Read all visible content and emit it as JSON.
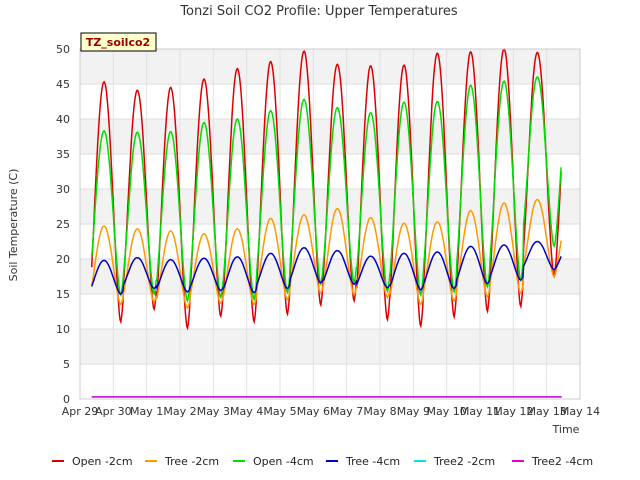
{
  "chart_data": {
    "type": "line",
    "title": "Tonzi Soil CO2 Profile: Upper Temperatures",
    "xlabel": "Time",
    "ylabel": "Soil Temperature (C)",
    "ylim": [
      0,
      50
    ],
    "yticks": [
      0,
      5,
      10,
      15,
      20,
      25,
      30,
      35,
      40,
      45,
      50
    ],
    "xlim": [
      "2024-04-29",
      "2024-05-14"
    ],
    "xtick_labels": [
      "Apr 29",
      "Apr 30",
      "May 1",
      "May 2",
      "May 3",
      "May 4",
      "May 5",
      "May 6",
      "May 7",
      "May 8",
      "May 9",
      "May 10",
      "May 11",
      "May 12",
      "May 13",
      "May 14"
    ],
    "x_start_day": 0.35,
    "badge": "TZ_soilco2",
    "grid": true,
    "legend_position": "bottom",
    "series": [
      {
        "name": "Open -2cm",
        "color": "#dd0000",
        "daily_max": [
          45.3,
          44.1,
          44.5,
          45.7,
          47.2,
          48.2,
          49.7,
          47.8,
          47.6,
          47.7,
          49.4,
          49.6,
          50.0,
          49.5
        ],
        "daily_min": [
          11.0,
          12.8,
          10.1,
          11.8,
          11.0,
          12.1,
          13.4,
          14.0,
          11.3,
          10.4,
          11.7,
          12.5,
          13.2,
          17.5
        ]
      },
      {
        "name": "Tree -2cm",
        "color": "#ff9900",
        "daily_max": [
          24.7,
          24.3,
          24.0,
          23.6,
          24.3,
          25.8,
          26.3,
          27.2,
          25.9,
          25.1,
          25.3,
          26.9,
          28.0,
          28.5
        ],
        "daily_min": [
          13.5,
          13.9,
          13.0,
          13.7,
          13.5,
          14.2,
          15.1,
          14.9,
          14.5,
          13.5,
          14.0,
          14.6,
          15.1,
          17.5
        ]
      },
      {
        "name": "Open -4cm",
        "color": "#00dd00",
        "daily_max": [
          38.3,
          38.1,
          38.2,
          39.5,
          40.0,
          41.2,
          42.8,
          41.6,
          40.9,
          42.4,
          42.5,
          44.8,
          45.4,
          46.0
        ],
        "daily_min": [
          14.8,
          15.0,
          14.0,
          14.5,
          14.2,
          15.2,
          16.4,
          16.6,
          15.4,
          14.8,
          15.3,
          16.0,
          16.9,
          21.8
        ]
      },
      {
        "name": "Tree -4cm",
        "color": "#0000cc",
        "daily_max": [
          19.8,
          20.2,
          19.9,
          20.1,
          20.3,
          20.8,
          21.6,
          21.2,
          20.4,
          20.8,
          21.0,
          21.8,
          22.0,
          22.5
        ],
        "daily_min": [
          15.0,
          15.8,
          15.3,
          15.5,
          15.2,
          15.8,
          16.6,
          16.4,
          15.9,
          15.6,
          15.8,
          16.5,
          17.0,
          18.5
        ]
      },
      {
        "name": "Tree2 -2cm",
        "color": "#00e5e5",
        "constant": 0.3
      },
      {
        "name": "Tree2 -4cm",
        "color": "#dd00dd",
        "constant": 0.3
      }
    ]
  }
}
